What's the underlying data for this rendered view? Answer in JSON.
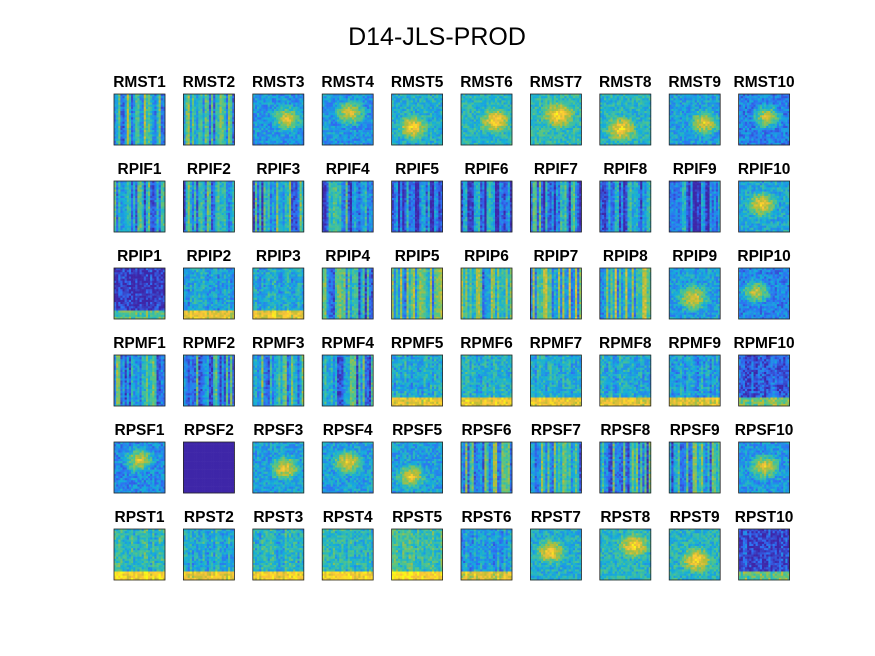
{
  "chart_data": {
    "type": "heatmap",
    "title": "D14-JLS-PROD",
    "colormap": "parula",
    "colormap_stops": [
      "#3e26a8",
      "#2f6ef4",
      "#14aeda",
      "#4fc58a",
      "#b7bd36",
      "#fcc23a",
      "#f9fb14"
    ],
    "frame_color": "#262626",
    "grid": {
      "rows": 6,
      "columns": 10
    },
    "panels": [
      {
        "label": "RMST1",
        "intensity": 0.55,
        "texture": "streaks"
      },
      {
        "label": "RMST2",
        "intensity": 0.55,
        "texture": "streaks"
      },
      {
        "label": "RMST3",
        "intensity": 0.5,
        "texture": "blob"
      },
      {
        "label": "RMST4",
        "intensity": 0.5,
        "texture": "blob"
      },
      {
        "label": "RMST5",
        "intensity": 0.65,
        "texture": "blob"
      },
      {
        "label": "RMST6",
        "intensity": 0.7,
        "texture": "blob"
      },
      {
        "label": "RMST7",
        "intensity": 0.75,
        "texture": "blob"
      },
      {
        "label": "RMST8",
        "intensity": 0.7,
        "texture": "blob"
      },
      {
        "label": "RMST9",
        "intensity": 0.55,
        "texture": "blob"
      },
      {
        "label": "RMST10",
        "intensity": 0.4,
        "texture": "blob"
      },
      {
        "label": "RPIF1",
        "intensity": 0.4,
        "texture": "streaks"
      },
      {
        "label": "RPIF2",
        "intensity": 0.45,
        "texture": "streaks"
      },
      {
        "label": "RPIF3",
        "intensity": 0.45,
        "texture": "streaks"
      },
      {
        "label": "RPIF4",
        "intensity": 0.35,
        "texture": "streaks"
      },
      {
        "label": "RPIF5",
        "intensity": 0.35,
        "texture": "streaks"
      },
      {
        "label": "RPIF6",
        "intensity": 0.3,
        "texture": "streaks"
      },
      {
        "label": "RPIF7",
        "intensity": 0.35,
        "texture": "streaks"
      },
      {
        "label": "RPIF8",
        "intensity": 0.3,
        "texture": "streaks"
      },
      {
        "label": "RPIF9",
        "intensity": 0.3,
        "texture": "streaks"
      },
      {
        "label": "RPIF10",
        "intensity": 0.6,
        "texture": "blob"
      },
      {
        "label": "RPIP1",
        "intensity": 0.05,
        "texture": "floor"
      },
      {
        "label": "RPIP2",
        "intensity": 0.4,
        "texture": "floor"
      },
      {
        "label": "RPIP3",
        "intensity": 0.45,
        "texture": "floor"
      },
      {
        "label": "RPIP4",
        "intensity": 0.45,
        "texture": "streaks"
      },
      {
        "label": "RPIP5",
        "intensity": 0.55,
        "texture": "streaks"
      },
      {
        "label": "RPIP6",
        "intensity": 0.55,
        "texture": "streaks"
      },
      {
        "label": "RPIP7",
        "intensity": 0.65,
        "texture": "streaks"
      },
      {
        "label": "RPIP8",
        "intensity": 0.65,
        "texture": "streaks"
      },
      {
        "label": "RPIP9",
        "intensity": 0.55,
        "texture": "blob"
      },
      {
        "label": "RPIP10",
        "intensity": 0.4,
        "texture": "blob"
      },
      {
        "label": "RPMF1",
        "intensity": 0.5,
        "texture": "streaks"
      },
      {
        "label": "RPMF2",
        "intensity": 0.5,
        "texture": "streaks"
      },
      {
        "label": "RPMF3",
        "intensity": 0.5,
        "texture": "streaks"
      },
      {
        "label": "RPMF4",
        "intensity": 0.45,
        "texture": "streaks"
      },
      {
        "label": "RPMF5",
        "intensity": 0.45,
        "texture": "floor"
      },
      {
        "label": "RPMF6",
        "intensity": 0.5,
        "texture": "floor"
      },
      {
        "label": "RPMF7",
        "intensity": 0.45,
        "texture": "floor"
      },
      {
        "label": "RPMF8",
        "intensity": 0.45,
        "texture": "floor"
      },
      {
        "label": "RPMF9",
        "intensity": 0.4,
        "texture": "floor"
      },
      {
        "label": "RPMF10",
        "intensity": 0.15,
        "texture": "floor"
      },
      {
        "label": "RPSF1",
        "intensity": 0.45,
        "texture": "blob"
      },
      {
        "label": "RPSF2",
        "intensity": 0.0,
        "texture": "flat"
      },
      {
        "label": "RPSF3",
        "intensity": 0.55,
        "texture": "blob"
      },
      {
        "label": "RPSF4",
        "intensity": 0.55,
        "texture": "blob"
      },
      {
        "label": "RPSF5",
        "intensity": 0.55,
        "texture": "blob"
      },
      {
        "label": "RPSF6",
        "intensity": 0.5,
        "texture": "streaks"
      },
      {
        "label": "RPSF7",
        "intensity": 0.5,
        "texture": "streaks"
      },
      {
        "label": "RPSF8",
        "intensity": 0.45,
        "texture": "streaks"
      },
      {
        "label": "RPSF9",
        "intensity": 0.45,
        "texture": "streaks"
      },
      {
        "label": "RPSF10",
        "intensity": 0.5,
        "texture": "blob"
      },
      {
        "label": "RPST1",
        "intensity": 0.55,
        "texture": "floor"
      },
      {
        "label": "RPST2",
        "intensity": 0.45,
        "texture": "floor"
      },
      {
        "label": "RPST3",
        "intensity": 0.5,
        "texture": "floor"
      },
      {
        "label": "RPST4",
        "intensity": 0.55,
        "texture": "floor"
      },
      {
        "label": "RPST5",
        "intensity": 0.6,
        "texture": "floor"
      },
      {
        "label": "RPST6",
        "intensity": 0.4,
        "texture": "floor"
      },
      {
        "label": "RPST7",
        "intensity": 0.65,
        "texture": "blob"
      },
      {
        "label": "RPST8",
        "intensity": 0.7,
        "texture": "blob"
      },
      {
        "label": "RPST9",
        "intensity": 0.7,
        "texture": "blob"
      },
      {
        "label": "RPST10",
        "intensity": 0.1,
        "texture": "floor"
      }
    ]
  }
}
